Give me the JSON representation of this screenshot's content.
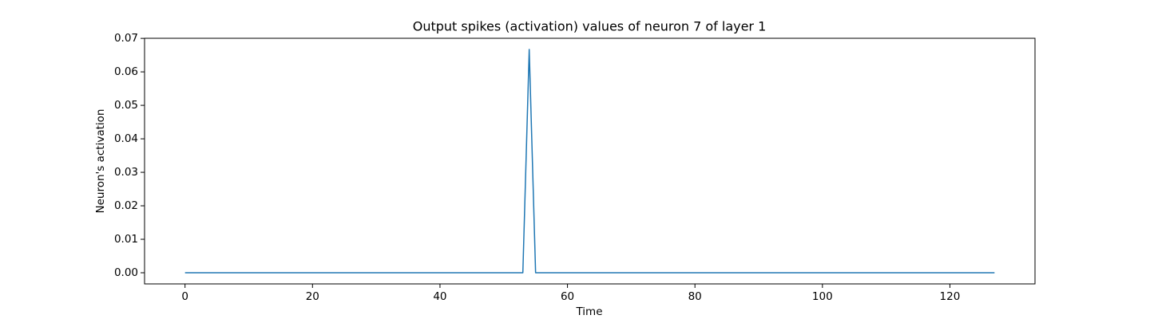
{
  "chart_data": {
    "type": "line",
    "title": "Output spikes (activation) values of neuron 7 of layer 1",
    "xlabel": "Time",
    "ylabel": "Neuron's activation",
    "x": [
      0,
      1,
      2,
      3,
      4,
      5,
      6,
      7,
      8,
      9,
      10,
      11,
      12,
      13,
      14,
      15,
      16,
      17,
      18,
      19,
      20,
      21,
      22,
      23,
      24,
      25,
      26,
      27,
      28,
      29,
      30,
      31,
      32,
      33,
      34,
      35,
      36,
      37,
      38,
      39,
      40,
      41,
      42,
      43,
      44,
      45,
      46,
      47,
      48,
      49,
      50,
      51,
      52,
      53,
      54,
      55,
      56,
      57,
      58,
      59,
      60,
      61,
      62,
      63,
      64,
      65,
      66,
      67,
      68,
      69,
      70,
      71,
      72,
      73,
      74,
      75,
      76,
      77,
      78,
      79,
      80,
      81,
      82,
      83,
      84,
      85,
      86,
      87,
      88,
      89,
      90,
      91,
      92,
      93,
      94,
      95,
      96,
      97,
      98,
      99,
      100,
      101,
      102,
      103,
      104,
      105,
      106,
      107,
      108,
      109,
      110,
      111,
      112,
      113,
      114,
      115,
      116,
      117,
      118,
      119,
      120,
      121,
      122,
      123,
      124,
      125,
      126,
      127
    ],
    "series": [
      {
        "color": "#1f77b4",
        "values": [
          0,
          0,
          0,
          0,
          0,
          0,
          0,
          0,
          0,
          0,
          0,
          0,
          0,
          0,
          0,
          0,
          0,
          0,
          0,
          0,
          0,
          0,
          0,
          0,
          0,
          0,
          0,
          0,
          0,
          0,
          0,
          0,
          0,
          0,
          0,
          0,
          0,
          0,
          0,
          0,
          0,
          0,
          0,
          0,
          0,
          0,
          0,
          0,
          0,
          0,
          0,
          0,
          0,
          0,
          0.0667,
          0,
          0,
          0,
          0,
          0,
          0,
          0,
          0,
          0,
          0,
          0,
          0,
          0,
          0,
          0,
          0,
          0,
          0,
          0,
          0,
          0,
          0,
          0,
          0,
          0,
          0,
          0,
          0,
          0,
          0,
          0,
          0,
          0,
          0,
          0,
          0,
          0,
          0,
          0,
          0,
          0,
          0,
          0,
          0,
          0,
          0,
          0,
          0,
          0,
          0,
          0,
          0,
          0,
          0,
          0,
          0,
          0,
          0,
          0,
          0,
          0,
          0,
          0,
          0,
          0,
          0,
          0,
          0,
          0,
          0,
          0,
          0,
          0
        ]
      }
    ],
    "xlim": [
      -6.35,
      133.35
    ],
    "xticks": [
      0,
      20,
      40,
      60,
      80,
      100,
      120
    ],
    "ylim": [
      -0.00333,
      0.07003
    ],
    "yticks": [
      {
        "value": 0,
        "label": "0.00"
      },
      {
        "value": 0.01,
        "label": "0.01"
      },
      {
        "value": 0.02,
        "label": "0.02"
      },
      {
        "value": 0.03,
        "label": "0.03"
      },
      {
        "value": 0.04,
        "label": "0.04"
      },
      {
        "value": 0.05,
        "label": "0.05"
      },
      {
        "value": 0.06,
        "label": "0.06"
      },
      {
        "value": 0.07,
        "label": "0.07"
      }
    ],
    "grid": false
  }
}
